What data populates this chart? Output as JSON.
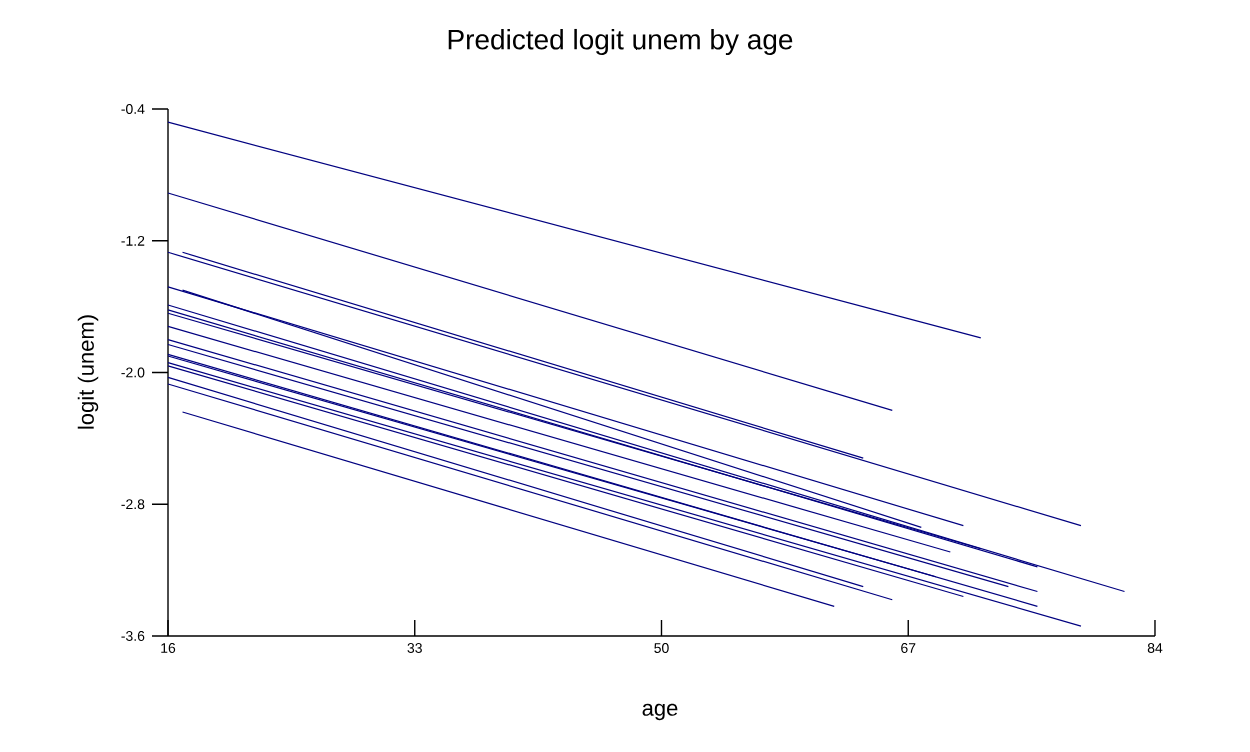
{
  "chart_data": {
    "type": "line",
    "title": "Predicted logit unem by age",
    "xlabel": "age",
    "ylabel": "logit (unem)",
    "xlim": [
      16,
      84
    ],
    "xticks": [
      16,
      33,
      50,
      67,
      84
    ],
    "ylim": [
      -3.6,
      -0.4
    ],
    "yticks": [
      -3.6,
      -2.8,
      {
        "value": -2.0,
        "label": "-2.0"
      },
      -1.2,
      -0.4
    ],
    "grid": false,
    "marker": "none",
    "line_style": "solid",
    "series": [
      {
        "color": "#000080",
        "x": [
          16,
          72.0
        ],
        "values": [
          -0.48,
          -1.79
        ]
      },
      {
        "color": "#000080",
        "x": [
          16,
          65.9
        ],
        "values": [
          -0.91,
          -2.23
        ]
      },
      {
        "color": "#000080",
        "x": [
          16,
          78.9
        ],
        "values": [
          -1.27,
          -2.93
        ]
      },
      {
        "color": "#000080",
        "x": [
          17.0,
          63.9
        ],
        "values": [
          -1.27,
          -2.52
        ]
      },
      {
        "color": "#000080",
        "x": [
          16,
          70.8
        ],
        "values": [
          -1.48,
          -2.93
        ]
      },
      {
        "color": "#000080",
        "x": [
          17.0,
          67.9
        ],
        "values": [
          -1.5,
          -2.94
        ]
      },
      {
        "color": "#000080",
        "x": [
          16,
          81.9
        ],
        "values": [
          -1.59,
          -3.33
        ]
      },
      {
        "color": "#000080",
        "x": [
          16,
          75.9
        ],
        "values": [
          -1.62,
          -3.18
        ]
      },
      {
        "color": "#000080",
        "x": [
          16,
          72.0
        ],
        "values": [
          -1.64,
          -3.07
        ]
      },
      {
        "color": "#000080",
        "x": [
          16,
          69.9
        ],
        "values": [
          -1.72,
          -3.09
        ]
      },
      {
        "color": "#000080",
        "x": [
          16,
          75.9
        ],
        "values": [
          -1.8,
          -3.33
        ]
      },
      {
        "color": "#000080",
        "x": [
          16,
          73.9
        ],
        "values": [
          -1.83,
          -3.3
        ]
      },
      {
        "color": "#000080",
        "x": [
          16,
          75.9
        ],
        "values": [
          -1.89,
          -3.42
        ]
      },
      {
        "color": "#000080",
        "x": [
          16,
          68.9
        ],
        "values": [
          -1.9,
          -3.24
        ]
      },
      {
        "color": "#000080",
        "x": [
          16,
          78.9
        ],
        "values": [
          -1.94,
          -3.54
        ]
      },
      {
        "color": "#000080",
        "x": [
          16,
          70.8
        ],
        "values": [
          -1.96,
          -3.36
        ]
      },
      {
        "color": "#000080",
        "x": [
          16,
          63.9
        ],
        "values": [
          -2.03,
          -3.3
        ]
      },
      {
        "color": "#000080",
        "x": [
          16,
          65.9
        ],
        "values": [
          -2.07,
          -3.38
        ]
      },
      {
        "color": "#000080",
        "x": [
          17.0,
          61.9
        ],
        "values": [
          -2.24,
          -3.42
        ]
      }
    ]
  }
}
